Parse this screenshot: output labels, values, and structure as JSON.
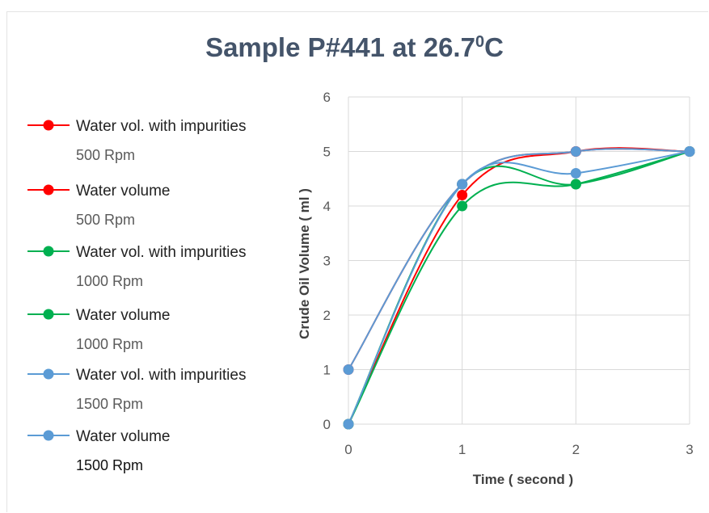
{
  "chart_data": {
    "type": "line",
    "title": "Sample P#441 at 26.7",
    "title_sup": "0",
    "title_unit": "C",
    "xlabel": "Time ( second )",
    "ylabel": "Crude Oil Volume ( ml )",
    "xlim": [
      0,
      3
    ],
    "ylim": [
      0,
      6
    ],
    "x_ticks": [
      "0",
      "1",
      "2",
      "3"
    ],
    "y_ticks": [
      "0",
      "1",
      "2",
      "3",
      "4",
      "5",
      "6"
    ],
    "grid": true,
    "legend_position": "left",
    "x": [
      0,
      1,
      2,
      3
    ],
    "series": [
      {
        "name": "Water vol. with impurities",
        "sub": "500 Rpm",
        "color": "#ff0000",
        "values": [
          1,
          4.4,
          5,
          5
        ]
      },
      {
        "name": "Water volume",
        "sub": "500 Rpm",
        "color": "#ff0000",
        "values": [
          0,
          4.2,
          5,
          5
        ]
      },
      {
        "name": "Water vol. with impurities",
        "sub": "1000 Rpm",
        "color": "#00b050",
        "values": [
          0,
          4.4,
          4.4,
          5
        ]
      },
      {
        "name": "Water volume",
        "sub": "1000 Rpm",
        "color": "#00b050",
        "values": [
          0,
          4,
          4.4,
          5
        ]
      },
      {
        "name": "Water vol. with impurities",
        "sub": "1500 Rpm",
        "color": "#5b9bd5",
        "values": [
          1,
          4.4,
          5,
          5
        ]
      },
      {
        "name": "Water volume",
        "sub": "1500 Rpm",
        "color": "#5b9bd5",
        "values": [
          0,
          4.4,
          4.6,
          5
        ]
      }
    ]
  }
}
